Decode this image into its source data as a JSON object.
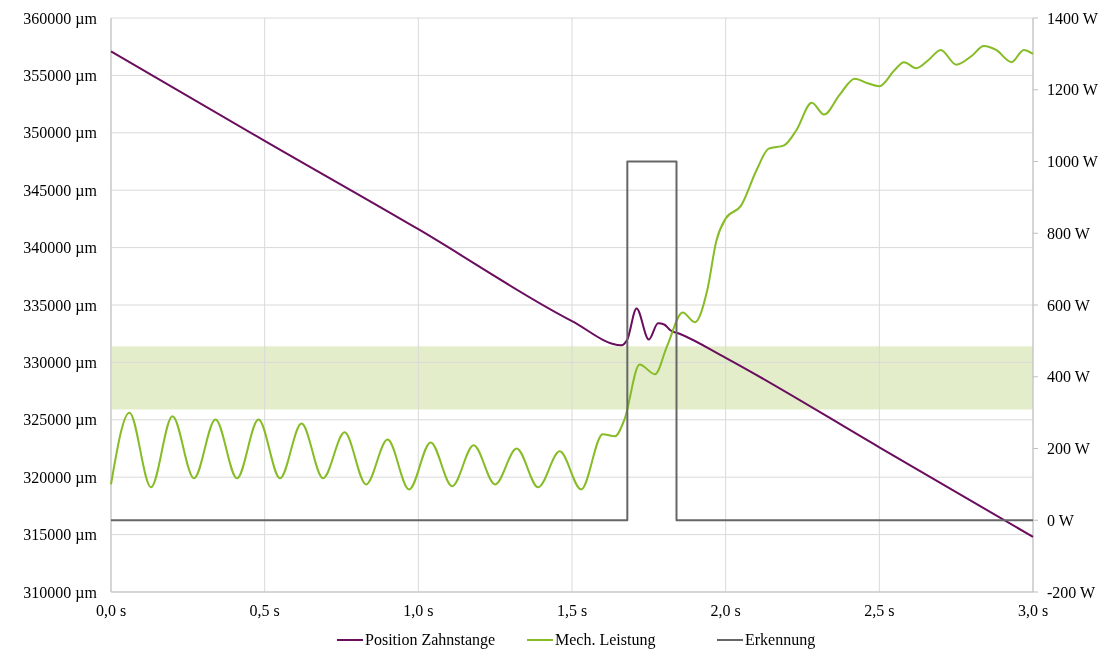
{
  "chart_data": {
    "type": "line",
    "xlim": [
      0,
      3
    ],
    "xticks": [
      {
        "value": 0,
        "label": "0,0 s"
      },
      {
        "value": 0.5,
        "label": "0,5 s"
      },
      {
        "value": 1,
        "label": "1,0 s"
      },
      {
        "value": 1.5,
        "label": "1,5 s"
      },
      {
        "value": 2,
        "label": "2,0 s"
      },
      {
        "value": 2.5,
        "label": "2,5 s"
      },
      {
        "value": 3,
        "label": "3,0 s"
      }
    ],
    "ylim": [
      310000,
      360000
    ],
    "yticks": [
      {
        "value": 310000,
        "label": "310000 µm"
      },
      {
        "value": 315000,
        "label": "315000 µm"
      },
      {
        "value": 320000,
        "label": "320000 µm"
      },
      {
        "value": 325000,
        "label": "325000 µm"
      },
      {
        "value": 330000,
        "label": "330000 µm"
      },
      {
        "value": 335000,
        "label": "335000 µm"
      },
      {
        "value": 340000,
        "label": "340000 µm"
      },
      {
        "value": 345000,
        "label": "345000 µm"
      },
      {
        "value": 350000,
        "label": "350000 µm"
      },
      {
        "value": 355000,
        "label": "355000 µm"
      },
      {
        "value": 360000,
        "label": "360000 µm"
      }
    ],
    "y2lim": [
      -200,
      1400
    ],
    "y2ticks": [
      {
        "value": -200,
        "label": "-200 W"
      },
      {
        "value": 0,
        "label": "0 W"
      },
      {
        "value": 200,
        "label": "200 W"
      },
      {
        "value": 400,
        "label": "400 W"
      },
      {
        "value": 600,
        "label": "600 W"
      },
      {
        "value": 800,
        "label": "800 W"
      },
      {
        "value": 1000,
        "label": "1000 W"
      },
      {
        "value": 1200,
        "label": "1200 W"
      },
      {
        "value": 1400,
        "label": "1400 W"
      }
    ],
    "grid": true,
    "legend": "bottom",
    "bands": [
      {
        "axis": "y",
        "from": 325900,
        "to": 331400,
        "color": "#e3edca"
      }
    ],
    "series": [
      {
        "name": "Position Zahnstange",
        "color": "#6b0d5e",
        "x": [
          0,
          0.5,
          1.0,
          1.5,
          1.66,
          1.68,
          1.71,
          1.75,
          1.78,
          1.8,
          1.82,
          1.85,
          2.0,
          2.5,
          3.0
        ],
        "values": [
          357100,
          349300,
          341600,
          333600,
          331500,
          332000,
          334700,
          332000,
          333400,
          333300,
          332800,
          332500,
          330400,
          322600,
          314800
        ]
      },
      {
        "name": "Mech. Leistung",
        "color": "#86bc25",
        "axis": "y2",
        "x": [
          0,
          0.06,
          0.13,
          0.2,
          0.27,
          0.34,
          0.41,
          0.48,
          0.55,
          0.62,
          0.69,
          0.76,
          0.83,
          0.9,
          0.97,
          1.04,
          1.11,
          1.18,
          1.25,
          1.32,
          1.39,
          1.46,
          1.53,
          1.6,
          1.64,
          1.67,
          1.72,
          1.77,
          1.81,
          1.86,
          1.9,
          1.94,
          1.97,
          2.0,
          2.05,
          2.1,
          2.14,
          2.19,
          2.23,
          2.28,
          2.32,
          2.37,
          2.42,
          2.46,
          2.5,
          2.55,
          2.58,
          2.62,
          2.66,
          2.7,
          2.75,
          2.8,
          2.84,
          2.88,
          2.93,
          2.97,
          3.0
        ],
        "values": [
          100,
          300,
          92,
          290,
          117,
          281,
          117,
          281,
          117,
          270,
          117,
          245,
          100,
          225,
          86,
          217,
          95,
          209,
          100,
          200,
          92,
          192,
          86,
          240,
          234,
          279,
          434,
          407,
          487,
          579,
          552,
          641,
          780,
          841,
          877,
          975,
          1036,
          1045,
          1087,
          1164,
          1131,
          1185,
          1231,
          1219,
          1210,
          1255,
          1277,
          1260,
          1283,
          1311,
          1270,
          1294,
          1322,
          1311,
          1277,
          1311,
          1300
        ]
      },
      {
        "name": "Erkennung",
        "color": "#666666",
        "type": "step",
        "axis": "y2",
        "x": [
          0,
          1.68,
          1.84,
          3.0
        ],
        "values": [
          0,
          1000,
          0,
          0
        ]
      }
    ]
  }
}
